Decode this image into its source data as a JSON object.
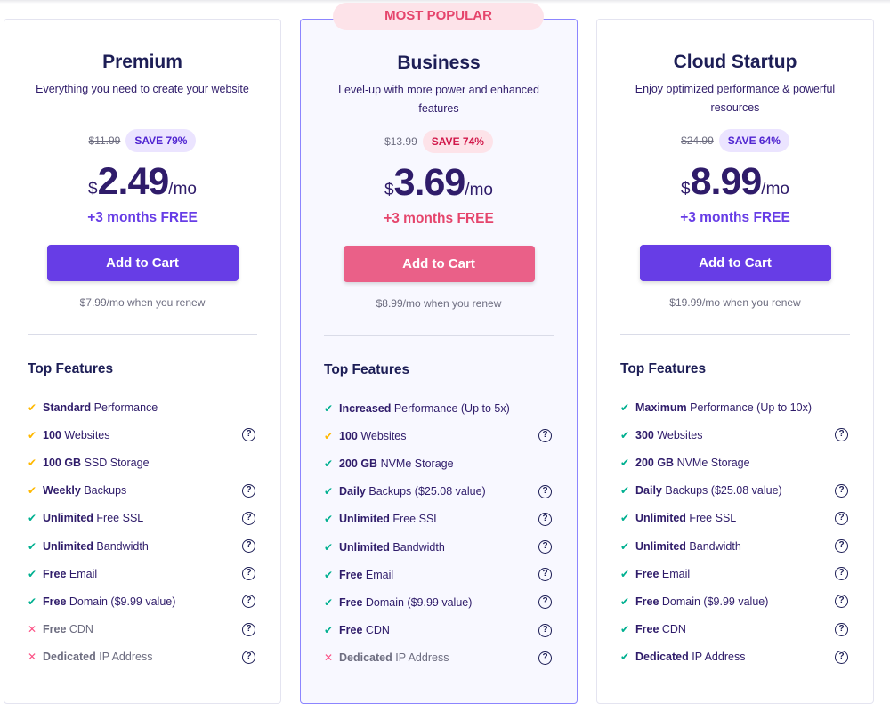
{
  "colors": {
    "primary": "#673de6",
    "popular": "#ea6088",
    "check_green": "#00b090",
    "check_yellow": "#ffb800",
    "cross_red": "#fc5185"
  },
  "popular_badge": "MOST POPULAR",
  "top_features_label": "Top Features",
  "plans": [
    {
      "name": "Premium",
      "desc": "Everything you need to create your website",
      "old_price": "$11.99",
      "save": "SAVE 79%",
      "currency": "$",
      "price": "2.49",
      "per": "/mo",
      "free": "+3 months FREE",
      "button": "Add to Cart",
      "renew": "$7.99/mo when you renew",
      "popular": false,
      "features": [
        {
          "bold": "Standard",
          "rest": " Performance",
          "icon": "check-yellow",
          "help": false
        },
        {
          "bold": "100",
          "rest": " Websites",
          "icon": "check-yellow",
          "help": true
        },
        {
          "bold": "100 GB",
          "rest": " SSD Storage",
          "icon": "check-yellow",
          "help": false
        },
        {
          "bold": "Weekly",
          "rest": " Backups",
          "icon": "check-yellow",
          "help": true
        },
        {
          "bold": "Unlimited",
          "rest": " Free SSL",
          "icon": "check-green",
          "help": true
        },
        {
          "bold": "Unlimited",
          "rest": " Bandwidth",
          "icon": "check-green",
          "help": true
        },
        {
          "bold": "Free",
          "rest": " Email",
          "icon": "check-green",
          "help": true
        },
        {
          "bold": "Free",
          "rest": " Domain ($9.99 value)",
          "icon": "check-green",
          "help": true
        },
        {
          "bold": "Free",
          "rest": " CDN",
          "icon": "cross",
          "help": true
        },
        {
          "bold": "Dedicated",
          "rest": " IP Address",
          "icon": "cross",
          "help": true
        }
      ]
    },
    {
      "name": "Business",
      "desc": "Level-up with more power and enhanced features",
      "old_price": "$13.99",
      "save": "SAVE 74%",
      "currency": "$",
      "price": "3.69",
      "per": "/mo",
      "free": "+3 months FREE",
      "button": "Add to Cart",
      "renew": "$8.99/mo when you renew",
      "popular": true,
      "features": [
        {
          "bold": "Increased",
          "rest": " Performance (Up to 5x)",
          "icon": "check-green",
          "help": false
        },
        {
          "bold": "100",
          "rest": " Websites",
          "icon": "check-yellow",
          "help": true
        },
        {
          "bold": "200 GB",
          "rest": " NVMe Storage",
          "icon": "check-green",
          "help": false
        },
        {
          "bold": "Daily",
          "rest": " Backups ($25.08 value)",
          "icon": "check-green",
          "help": true
        },
        {
          "bold": "Unlimited",
          "rest": " Free SSL",
          "icon": "check-green",
          "help": true
        },
        {
          "bold": "Unlimited",
          "rest": " Bandwidth",
          "icon": "check-green",
          "help": true
        },
        {
          "bold": "Free",
          "rest": " Email",
          "icon": "check-green",
          "help": true
        },
        {
          "bold": "Free",
          "rest": " Domain ($9.99 value)",
          "icon": "check-green",
          "help": true
        },
        {
          "bold": "Free",
          "rest": " CDN",
          "icon": "check-green",
          "help": true
        },
        {
          "bold": "Dedicated",
          "rest": " IP Address",
          "icon": "cross",
          "help": true
        }
      ]
    },
    {
      "name": "Cloud Startup",
      "desc": "Enjoy optimized performance & powerful resources",
      "old_price": "$24.99",
      "save": "SAVE 64%",
      "currency": "$",
      "price": "8.99",
      "per": "/mo",
      "free": "+3 months FREE",
      "button": "Add to Cart",
      "renew": "$19.99/mo when you renew",
      "popular": false,
      "features": [
        {
          "bold": "Maximum",
          "rest": " Performance (Up to 10x)",
          "icon": "check-green",
          "help": false
        },
        {
          "bold": "300",
          "rest": " Websites",
          "icon": "check-green",
          "help": true
        },
        {
          "bold": "200 GB",
          "rest": " NVMe Storage",
          "icon": "check-green",
          "help": false
        },
        {
          "bold": "Daily",
          "rest": " Backups ($25.08 value)",
          "icon": "check-green",
          "help": true
        },
        {
          "bold": "Unlimited",
          "rest": " Free SSL",
          "icon": "check-green",
          "help": true
        },
        {
          "bold": "Unlimited",
          "rest": " Bandwidth",
          "icon": "check-green",
          "help": true
        },
        {
          "bold": "Free",
          "rest": " Email",
          "icon": "check-green",
          "help": true
        },
        {
          "bold": "Free",
          "rest": " Domain ($9.99 value)",
          "icon": "check-green",
          "help": true
        },
        {
          "bold": "Free",
          "rest": " CDN",
          "icon": "check-green",
          "help": true
        },
        {
          "bold": "Dedicated",
          "rest": " IP Address",
          "icon": "check-green",
          "help": true
        }
      ]
    }
  ]
}
